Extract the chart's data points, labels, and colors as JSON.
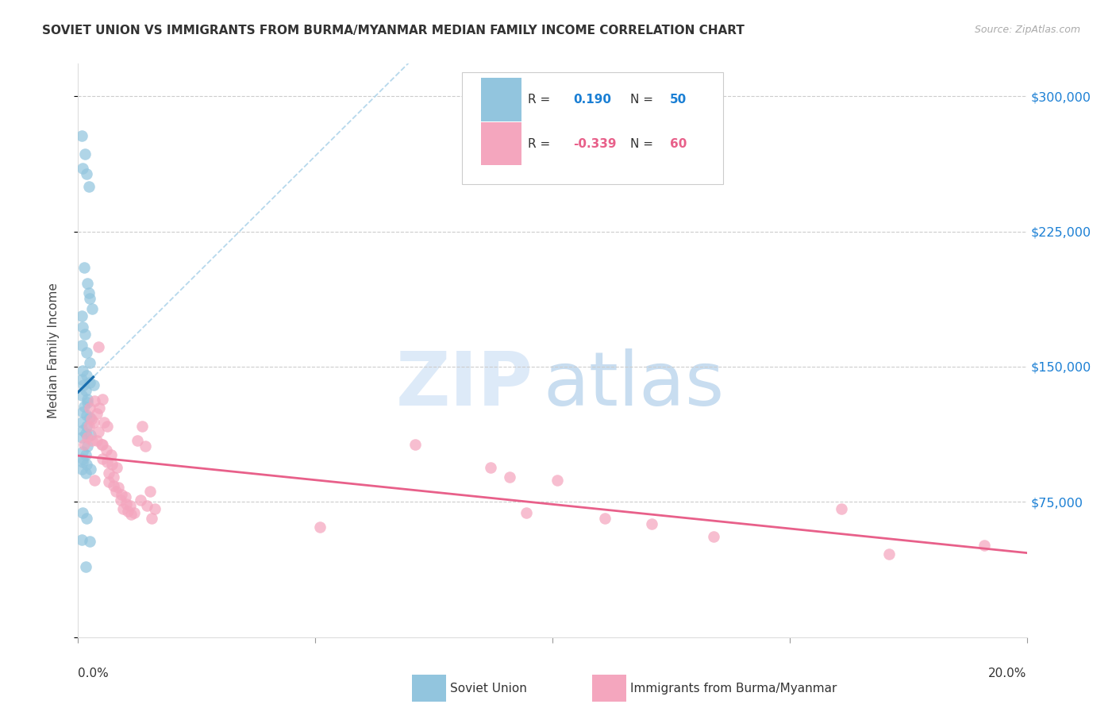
{
  "title": "SOVIET UNION VS IMMIGRANTS FROM BURMA/MYANMAR MEDIAN FAMILY INCOME CORRELATION CHART",
  "source": "Source: ZipAtlas.com",
  "ylabel": "Median Family Income",
  "y_ticks": [
    0,
    75000,
    150000,
    225000,
    300000
  ],
  "y_tick_labels": [
    "",
    "$75,000",
    "$150,000",
    "$225,000",
    "$300,000"
  ],
  "xmin": 0.0,
  "xmax": 0.2,
  "ymin": 25000,
  "ymax": 318000,
  "color_blue": "#92c5de",
  "color_pink": "#f4a6be",
  "color_blue_line": "#1a6faf",
  "color_pink_line": "#e8608a",
  "color_blue_dashed": "#aed4ea",
  "soviet_x": [
    0.0008,
    0.0015,
    0.001,
    0.0018,
    0.0022,
    0.0012,
    0.002,
    0.0025,
    0.003,
    0.0022,
    0.0007,
    0.001,
    0.0015,
    0.0008,
    0.0018,
    0.0025,
    0.0009,
    0.0018,
    0.0008,
    0.0011,
    0.0016,
    0.0024,
    0.0008,
    0.0019,
    0.0012,
    0.0032,
    0.002,
    0.0009,
    0.0018,
    0.0025,
    0.0008,
    0.0018,
    0.001,
    0.0016,
    0.0008,
    0.0026,
    0.0019,
    0.0009,
    0.0016,
    0.001,
    0.0009,
    0.0018,
    0.0026,
    0.0007,
    0.0016,
    0.001,
    0.0018,
    0.0008,
    0.0024,
    0.0016
  ],
  "soviet_y": [
    278000,
    268000,
    260000,
    257000,
    250000,
    205000,
    196000,
    188000,
    182000,
    191000,
    178000,
    172000,
    168000,
    162000,
    158000,
    152000,
    148000,
    145000,
    143000,
    140000,
    137000,
    141000,
    134000,
    132000,
    128000,
    140000,
    130000,
    125000,
    123000,
    122000,
    119000,
    117000,
    115000,
    113000,
    111000,
    112000,
    106000,
    103000,
    101000,
    99000,
    97000,
    96000,
    93000,
    93000,
    91000,
    69000,
    66000,
    54000,
    53000,
    39000
  ],
  "burma_x": [
    0.0012,
    0.002,
    0.0028,
    0.0022,
    0.003,
    0.004,
    0.0025,
    0.0033,
    0.0042,
    0.0052,
    0.0035,
    0.0045,
    0.0055,
    0.0062,
    0.004,
    0.005,
    0.006,
    0.007,
    0.0052,
    0.0062,
    0.0072,
    0.0082,
    0.0065,
    0.0075,
    0.0042,
    0.0052,
    0.0035,
    0.0065,
    0.0075,
    0.0085,
    0.008,
    0.0092,
    0.01,
    0.009,
    0.0102,
    0.011,
    0.0095,
    0.0105,
    0.0118,
    0.0112,
    0.0135,
    0.0125,
    0.0142,
    0.0132,
    0.0152,
    0.0145,
    0.0162,
    0.0155,
    0.051,
    0.071,
    0.087,
    0.091,
    0.0945,
    0.101,
    0.111,
    0.121,
    0.134,
    0.161,
    0.171,
    0.191
  ],
  "burma_y": [
    107000,
    111000,
    121000,
    117000,
    109000,
    124000,
    127000,
    119000,
    114000,
    107000,
    131000,
    127000,
    119000,
    117000,
    109000,
    107000,
    104000,
    101000,
    99000,
    97000,
    96000,
    94000,
    91000,
    89000,
    161000,
    132000,
    87000,
    86000,
    84000,
    83000,
    81000,
    79000,
    78000,
    76000,
    74000,
    73000,
    71000,
    70000,
    69000,
    68000,
    117000,
    109000,
    106000,
    76000,
    81000,
    73000,
    71000,
    66000,
    61000,
    107000,
    94000,
    89000,
    69000,
    87000,
    66000,
    63000,
    56000,
    71000,
    46000,
    51000
  ]
}
